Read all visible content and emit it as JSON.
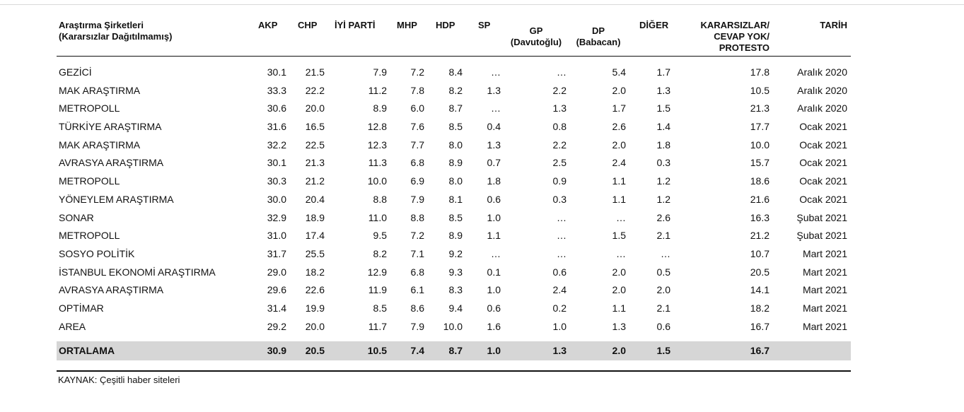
{
  "headers": {
    "company": "Araştırma Şirketleri\n(Kararsızlar Dağıtılmamış)",
    "akp": "AKP",
    "chp": "CHP",
    "iyi": "İYİ PARTİ",
    "mhp": "MHP",
    "hdp": "HDP",
    "sp": "SP",
    "gp": "GP\n(Davutoğlu)",
    "dp": "DP\n(Babacan)",
    "diger": "DİĞER",
    "kararsiz": "KARARSIZLAR/\nCEVAP YOK/\nPROTESTO",
    "tarih": "TARİH"
  },
  "rows": [
    {
      "company": "GEZİCİ",
      "akp": "30.1",
      "chp": "21.5",
      "iyi": "7.9",
      "mhp": "7.2",
      "hdp": "8.4",
      "sp": "…",
      "gp": "…",
      "dp": "5.4",
      "diger": "1.7",
      "kararsiz": "17.8",
      "tarih": "Aralık 2020"
    },
    {
      "company": "MAK ARAŞTIRMA",
      "akp": "33.3",
      "chp": "22.2",
      "iyi": "11.2",
      "mhp": "7.8",
      "hdp": "8.2",
      "sp": "1.3",
      "gp": "2.2",
      "dp": "2.0",
      "diger": "1.3",
      "kararsiz": "10.5",
      "tarih": "Aralık 2020"
    },
    {
      "company": "METROPOLL",
      "akp": "30.6",
      "chp": "20.0",
      "iyi": "8.9",
      "mhp": "6.0",
      "hdp": "8.7",
      "sp": "…",
      "gp": "1.3",
      "dp": "1.7",
      "diger": "1.5",
      "kararsiz": "21.3",
      "tarih": "Aralık 2020"
    },
    {
      "company": "TÜRKİYE ARAŞTIRMA",
      "akp": "31.6",
      "chp": "16.5",
      "iyi": "12.8",
      "mhp": "7.6",
      "hdp": "8.5",
      "sp": "0.4",
      "gp": "0.8",
      "dp": "2.6",
      "diger": "1.4",
      "kararsiz": "17.7",
      "tarih": "Ocak 2021"
    },
    {
      "company": "MAK ARAŞTIRMA",
      "akp": "32.2",
      "chp": "22.5",
      "iyi": "12.3",
      "mhp": "7.7",
      "hdp": "8.0",
      "sp": "1.3",
      "gp": "2.2",
      "dp": "2.0",
      "diger": "1.8",
      "kararsiz": "10.0",
      "tarih": "Ocak 2021"
    },
    {
      "company": "AVRASYA ARAŞTIRMA",
      "akp": "30.1",
      "chp": "21.3",
      "iyi": "11.3",
      "mhp": "6.8",
      "hdp": "8.9",
      "sp": "0.7",
      "gp": "2.5",
      "dp": "2.4",
      "diger": "0.3",
      "kararsiz": "15.7",
      "tarih": "Ocak 2021"
    },
    {
      "company": "METROPOLL",
      "akp": "30.3",
      "chp": "21.2",
      "iyi": "10.0",
      "mhp": "6.9",
      "hdp": "8.0",
      "sp": "1.8",
      "gp": "0.9",
      "dp": "1.1",
      "diger": "1.2",
      "kararsiz": "18.6",
      "tarih": "Ocak 2021"
    },
    {
      "company": "YÖNEYLEM ARAŞTIRMA",
      "akp": "30.0",
      "chp": "20.4",
      "iyi": "8.8",
      "mhp": "7.9",
      "hdp": "8.1",
      "sp": "0.6",
      "gp": "0.3",
      "dp": "1.1",
      "diger": "1.2",
      "kararsiz": "21.6",
      "tarih": "Ocak 2021"
    },
    {
      "company": "SONAR",
      "akp": "32.9",
      "chp": "18.9",
      "iyi": "11.0",
      "mhp": "8.8",
      "hdp": "8.5",
      "sp": "1.0",
      "gp": "…",
      "dp": "…",
      "diger": "2.6",
      "kararsiz": "16.3",
      "tarih": "Şubat 2021"
    },
    {
      "company": "METROPOLL",
      "akp": "31.0",
      "chp": "17.4",
      "iyi": "9.5",
      "mhp": "7.2",
      "hdp": "8.9",
      "sp": "1.1",
      "gp": "…",
      "dp": "1.5",
      "diger": "2.1",
      "kararsiz": "21.2",
      "tarih": "Şubat 2021"
    },
    {
      "company": "SOSYO POLİTİK",
      "akp": "31.7",
      "chp": "25.5",
      "iyi": "8.2",
      "mhp": "7.1",
      "hdp": "9.2",
      "sp": "…",
      "gp": "…",
      "dp": "…",
      "diger": "…",
      "kararsiz": "10.7",
      "tarih": "Mart 2021"
    },
    {
      "company": "İSTANBUL EKONOMİ ARAŞTIRMA",
      "akp": "29.0",
      "chp": "18.2",
      "iyi": "12.9",
      "mhp": "6.8",
      "hdp": "9.3",
      "sp": "0.1",
      "gp": "0.6",
      "dp": "2.0",
      "diger": "0.5",
      "kararsiz": "20.5",
      "tarih": "Mart 2021"
    },
    {
      "company": "AVRASYA ARAŞTIRMA",
      "akp": "29.6",
      "chp": "22.6",
      "iyi": "11.9",
      "mhp": "6.1",
      "hdp": "8.3",
      "sp": "1.0",
      "gp": "2.4",
      "dp": "2.0",
      "diger": "2.0",
      "kararsiz": "14.1",
      "tarih": "Mart 2021"
    },
    {
      "company": "OPTİMAR",
      "akp": "31.4",
      "chp": "19.9",
      "iyi": "8.5",
      "mhp": "8.6",
      "hdp": "9.4",
      "sp": "0.6",
      "gp": "0.2",
      "dp": "1.1",
      "diger": "2.1",
      "kararsiz": "18.2",
      "tarih": "Mart 2021"
    },
    {
      "company": "AREA",
      "akp": "29.2",
      "chp": "20.0",
      "iyi": "11.7",
      "mhp": "7.9",
      "hdp": "10.0",
      "sp": "1.6",
      "gp": "1.0",
      "dp": "1.3",
      "diger": "0.6",
      "kararsiz": "16.7",
      "tarih": "Mart 2021"
    }
  ],
  "average": {
    "company": "ORTALAMA",
    "akp": "30.9",
    "chp": "20.5",
    "iyi": "10.5",
    "mhp": "7.4",
    "hdp": "8.7",
    "sp": "1.0",
    "gp": "1.3",
    "dp": "2.0",
    "diger": "1.5",
    "kararsiz": "16.7",
    "tarih": ""
  },
  "source": "KAYNAK: Çeşitli haber siteleri"
}
